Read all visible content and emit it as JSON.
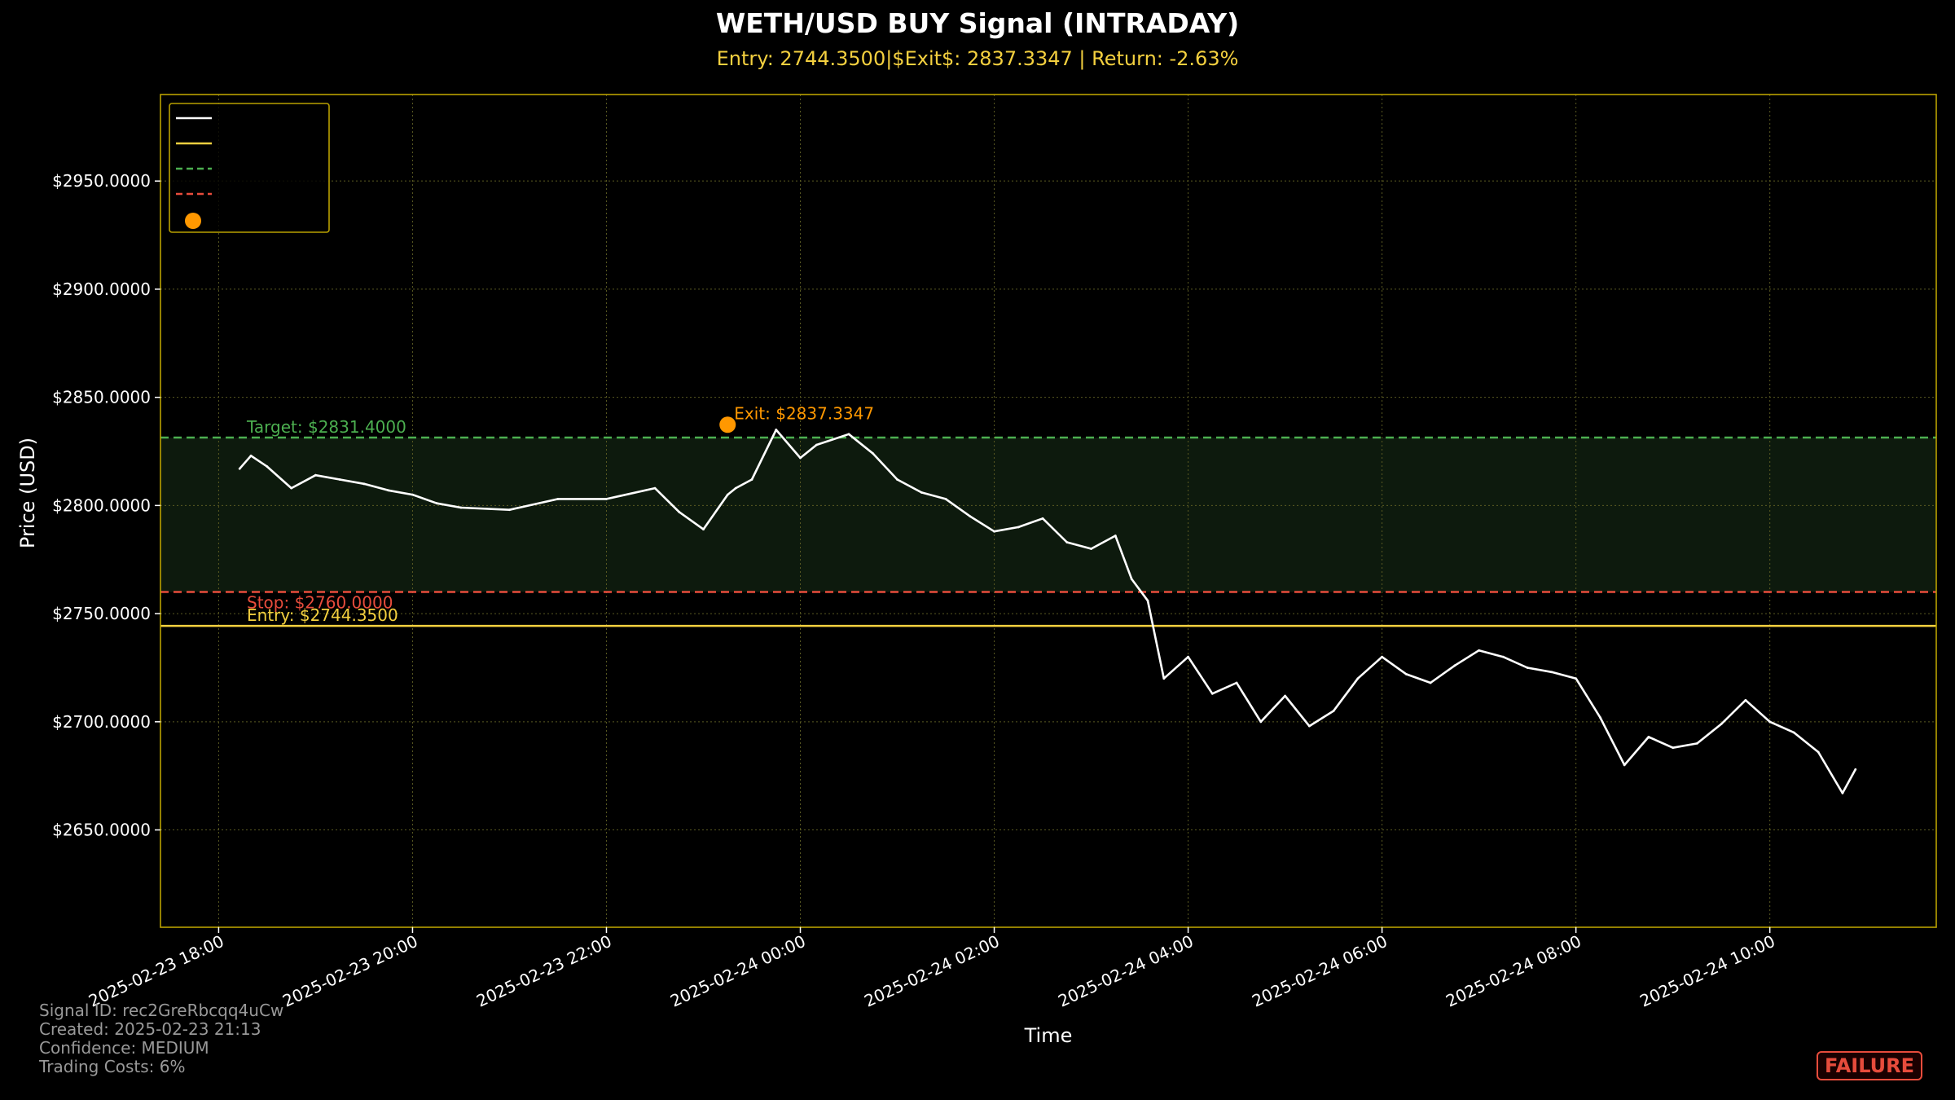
{
  "chart_data": {
    "type": "line",
    "title": "WETH/USD BUY Signal (INTRADAY)",
    "subtitle": "Entry: 2744.3500|$Exit$: 2837.3347 | Return: -2.63%",
    "xlabel": "Time",
    "ylabel": "Price (USD)",
    "ylim": [
      2605,
      2990
    ],
    "xlim": [
      "2025-02-23 17:24",
      "2025-02-24 11:43"
    ],
    "grid": true,
    "legend_position": "top-left",
    "y_ticks": [
      2650,
      2700,
      2750,
      2800,
      2850,
      2900,
      2950
    ],
    "y_tick_labels": [
      "$2650.0000",
      "$2700.0000",
      "$2750.0000",
      "$2800.0000",
      "$2850.0000",
      "$2900.0000",
      "$2950.0000"
    ],
    "x_ticks": [
      "2025-02-23 18:00",
      "2025-02-23 20:00",
      "2025-02-23 22:00",
      "2025-02-24 00:00",
      "2025-02-24 02:00",
      "2025-02-24 04:00",
      "2025-02-24 06:00",
      "2025-02-24 08:00",
      "2025-02-24 10:00"
    ],
    "x_tick_labels": [
      "2025-02-23 18:00",
      "2025-02-23 20:00",
      "2025-02-23 22:00",
      "2025-02-24 00:00",
      "2025-02-24 02:00",
      "2025-02-24 04:00",
      "2025-02-24 06:00",
      "2025-02-24 08:00",
      "2025-02-24 10:00"
    ],
    "series": [
      {
        "color": "#ffffff",
        "x": [
          "2025-02-23 18:13",
          "2025-02-23 18:20",
          "2025-02-23 18:30",
          "2025-02-23 18:45",
          "2025-02-23 19:00",
          "2025-02-23 19:15",
          "2025-02-23 19:30",
          "2025-02-23 19:45",
          "2025-02-23 20:00",
          "2025-02-23 20:15",
          "2025-02-23 20:30",
          "2025-02-23 21:00",
          "2025-02-23 21:30",
          "2025-02-23 22:00",
          "2025-02-23 22:30",
          "2025-02-23 22:45",
          "2025-02-23 23:00",
          "2025-02-23 23:15",
          "2025-02-23 23:20",
          "2025-02-23 23:30",
          "2025-02-23 23:45",
          "2025-02-24 00:00",
          "2025-02-24 00:10",
          "2025-02-24 00:30",
          "2025-02-24 00:45",
          "2025-02-24 01:00",
          "2025-02-24 01:15",
          "2025-02-24 01:30",
          "2025-02-24 01:45",
          "2025-02-24 02:00",
          "2025-02-24 02:15",
          "2025-02-24 02:30",
          "2025-02-24 02:45",
          "2025-02-24 03:00",
          "2025-02-24 03:15",
          "2025-02-24 03:25",
          "2025-02-24 03:35",
          "2025-02-24 03:45",
          "2025-02-24 04:00",
          "2025-02-24 04:15",
          "2025-02-24 04:30",
          "2025-02-24 04:45",
          "2025-02-24 05:00",
          "2025-02-24 05:15",
          "2025-02-24 05:30",
          "2025-02-24 05:45",
          "2025-02-24 06:00",
          "2025-02-24 06:15",
          "2025-02-24 06:30",
          "2025-02-24 06:45",
          "2025-02-24 07:00",
          "2025-02-24 07:15",
          "2025-02-24 07:30",
          "2025-02-24 07:45",
          "2025-02-24 08:00",
          "2025-02-24 08:15",
          "2025-02-24 08:30",
          "2025-02-24 08:45",
          "2025-02-24 09:00",
          "2025-02-24 09:15",
          "2025-02-24 09:30",
          "2025-02-24 09:45",
          "2025-02-24 10:00",
          "2025-02-24 10:15",
          "2025-02-24 10:30",
          "2025-02-24 10:45",
          "2025-02-24 10:53"
        ],
        "values": [
          2817,
          2823,
          2818,
          2808,
          2814,
          2812,
          2810,
          2807,
          2805,
          2801,
          2799,
          2798,
          2803,
          2803,
          2808,
          2797,
          2789,
          2805,
          2808,
          2812,
          2835,
          2822,
          2828,
          2833,
          2824,
          2812,
          2806,
          2803,
          2795,
          2788,
          2790,
          2794,
          2783,
          2780,
          2786,
          2766,
          2756,
          2720,
          2730,
          2713,
          2718,
          2700,
          2712,
          2698,
          2705,
          2720,
          2730,
          2722,
          2718,
          2726,
          2733,
          2730,
          2725,
          2723,
          2720,
          2702,
          2680,
          2693,
          2688,
          2690,
          2699,
          2710,
          2700,
          2695,
          2686,
          2667,
          2678
        ]
      }
    ],
    "horizontal_lines": [
      {
        "value": 2831.4,
        "color": "#4caf50",
        "style": "dashed",
        "label": "Target: $2831.4000"
      },
      {
        "value": 2760.0,
        "color": "#e74c3c",
        "style": "dashed",
        "label": "Stop: $2760.0000"
      },
      {
        "value": 2744.35,
        "color": "#f4d03f",
        "style": "solid",
        "label": "Entry: $2744.3500"
      }
    ],
    "shaded_band": {
      "from": 2760.0,
      "to": 2831.4,
      "color": "#0d1a0d"
    },
    "markers": [
      {
        "x": "2025-02-23 23:15",
        "y": 2837.3347,
        "color": "#ff9800",
        "label": "Exit: $2837.3347"
      }
    ],
    "legend_entries": [
      {
        "color": "#ffffff",
        "style": "solid"
      },
      {
        "color": "#f4d03f",
        "style": "solid"
      },
      {
        "color": "#4caf50",
        "style": "dashed"
      },
      {
        "color": "#e74c3c",
        "style": "dashed"
      },
      {
        "color": "#ff9800",
        "style": "dot"
      }
    ],
    "colors": {
      "background": "#000000",
      "axes_frame": "#b8a000",
      "grid": "#5a5a22",
      "text": "#ffffff",
      "subtitle": "#f4d03f"
    }
  },
  "footer": {
    "signal_id": "Signal ID: rec2GreRbcqq4uCw",
    "created": "Created: 2025-02-23 21:13",
    "confidence": "Confidence: MEDIUM",
    "trading_costs": "Trading Costs: 6%"
  },
  "status": {
    "label": "FAILURE",
    "color": "#e74c3c"
  }
}
